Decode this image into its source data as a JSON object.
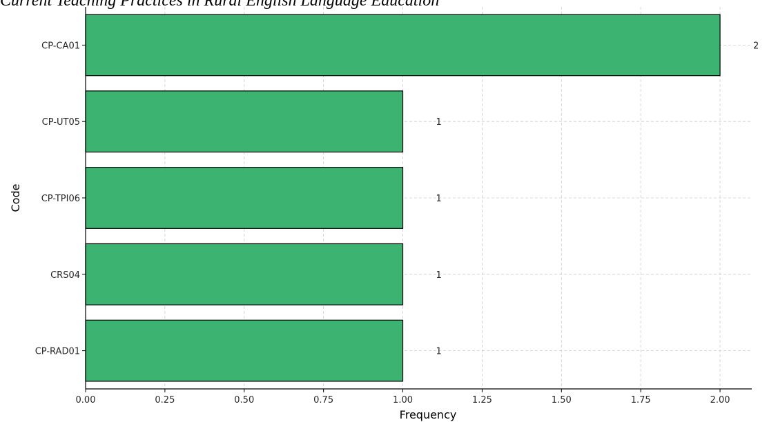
{
  "chart_data": {
    "type": "bar",
    "orientation": "horizontal",
    "title": "Current Teaching Practices in Rural English Language Education",
    "xlabel": "Frequency",
    "ylabel": "Code",
    "categories": [
      "CP-CA01",
      "CP-UT05",
      "CP-TPI06",
      "CRS04",
      "CP-RAD01"
    ],
    "values": [
      2,
      1,
      1,
      1,
      1
    ],
    "data_labels": [
      "2",
      "1",
      "1",
      "1",
      "1"
    ],
    "xlim": [
      0,
      2.1
    ],
    "xticks": [
      "0.00",
      "0.25",
      "0.50",
      "0.75",
      "1.00",
      "1.25",
      "1.50",
      "1.75",
      "2.00"
    ],
    "grid": true,
    "bar_color": "#3cb371",
    "bar_edge_color": "#000000"
  }
}
